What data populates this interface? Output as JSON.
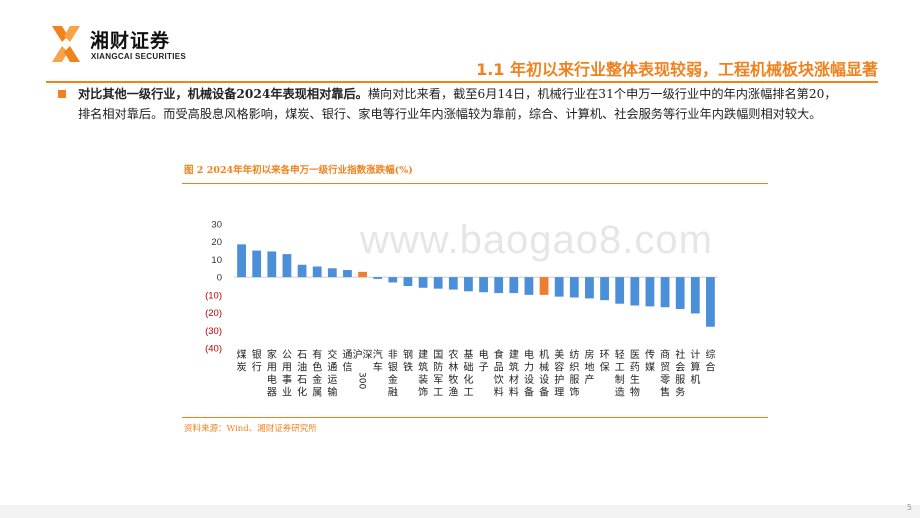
{
  "header": {
    "logo_cn": "湘财证券",
    "logo_en": "XIANGCAI SECURITIES",
    "logo_icon": "xiangcai-logo-icon",
    "title": "1.1 年初以来行业整体表现较弱，工程机械板块涨幅显著"
  },
  "summary": {
    "bold": "对比其他一级行业，机械设备2024年表现相对靠后。",
    "text": "横向对比来看，截至6月14日，机械行业在31个申万一级行业中的年内涨幅排名第20，排名相对靠后。而受高股息风格影响，煤炭、银行、家电等行业年内涨幅较为靠前，综合、计算机、社会服务等行业年内跌幅则相对较大。"
  },
  "watermark": "www.baogao8.com",
  "page_number": "5",
  "colors": {
    "accent": "#f0821e",
    "bar": "#4a8fd8",
    "highlight": "#ed7d31"
  },
  "chart_data": {
    "type": "bar",
    "title": "图 2 2024年年初以来各申万一级行业指数涨跌幅(%)",
    "source": "资料来源：Wind、湘财证券研究所",
    "categories": [
      "煤炭",
      "银行",
      "家用电器",
      "公用事业",
      "石油石化",
      "有色金属",
      "交通运输",
      "通信",
      "沪深300",
      "汽车",
      "非银金融",
      "钢铁",
      "建筑装饰",
      "国防军工",
      "农林牧渔",
      "基础化工",
      "电子",
      "食品饮料",
      "建筑材料",
      "电力设备",
      "机械设备",
      "美容护理",
      "纺织服饰",
      "房地产",
      "环保",
      "轻工制造",
      "医药生物",
      "传媒",
      "商贸零售",
      "社会服务",
      "计算机",
      "综合"
    ],
    "values": [
      18.5,
      15,
      14.5,
      13,
      7,
      6,
      5,
      4,
      3,
      -1,
      -3,
      -5,
      -6,
      -6.5,
      -7,
      -8,
      -8.5,
      -9,
      -9,
      -10,
      -10,
      -11,
      -11.5,
      -12,
      -13,
      -15,
      -16,
      -16.5,
      -17,
      -18,
      -20.5,
      -28
    ],
    "highlight": [
      "沪深300",
      "机械设备"
    ],
    "yticks": [
      30,
      20,
      10,
      0,
      -10,
      -20,
      -30,
      -40
    ],
    "ytick_labels": [
      "30",
      "20",
      "10",
      "0",
      "(10)",
      "(20)",
      "(30)",
      "(40)"
    ],
    "ylim": [
      -40,
      30
    ],
    "grid": false,
    "xlabel": "",
    "ylabel": ""
  }
}
